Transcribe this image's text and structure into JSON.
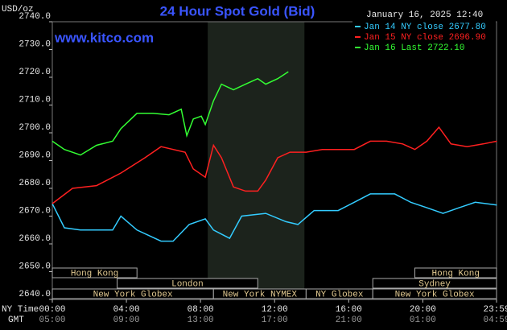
{
  "chart_data": {
    "type": "line",
    "title": "24 Hour Spot Gold (Bid)",
    "y_unit": "USD/oz",
    "watermark": "www.kitco.com",
    "timestamp": "January 16, 2025 12:40",
    "x_row_labels": [
      "NY Time",
      "GMT"
    ],
    "xlim": [
      0,
      23.98
    ],
    "xticks": [
      {
        "value": 0,
        "label": "00:00"
      },
      {
        "value": 4,
        "label": "04:00"
      },
      {
        "value": 8,
        "label": "08:00"
      },
      {
        "value": 12,
        "label": "12:00"
      },
      {
        "value": 16,
        "label": "16:00"
      },
      {
        "value": 20,
        "label": "20:00"
      },
      {
        "value": 23.98,
        "label": "23:59"
      }
    ],
    "gmt_labels": [
      "05:00",
      "09:00",
      "13:00",
      "17:00",
      "21:00",
      "01:00",
      "04:59"
    ],
    "ylim": [
      2640,
      2740
    ],
    "yticks": [
      {
        "value": 2740,
        "label": "2740.0"
      },
      {
        "value": 2730,
        "label": "2730.0"
      },
      {
        "value": 2720,
        "label": "2720.0"
      },
      {
        "value": 2710,
        "label": "2710.0"
      },
      {
        "value": 2700,
        "label": "2700.0"
      },
      {
        "value": 2690,
        "label": "2690.0"
      },
      {
        "value": 2680,
        "label": "2680.0"
      },
      {
        "value": 2670,
        "label": "2670.0"
      },
      {
        "value": 2660,
        "label": "2660.0"
      },
      {
        "value": 2650,
        "label": "2650.0"
      },
      {
        "value": 2640,
        "label": "2640.0"
      }
    ],
    "shaded": [
      8.39,
      13.61
    ],
    "sessions": [
      [
        {
          "label": "Hong Kong",
          "start": 0,
          "end": 4.57
        },
        {
          "label": "Hong Kong",
          "start": 19.57,
          "end": 23.98
        }
      ],
      [
        {
          "label": "London",
          "start": 3.5,
          "end": 11.09
        },
        {
          "label": "Sydney",
          "start": 17.3,
          "end": 23.98
        }
      ],
      [
        {
          "label": "New York Globex",
          "start": 0,
          "end": 8.7
        },
        {
          "label": "New York NYMEX",
          "start": 8.7,
          "end": 13.7
        },
        {
          "label": "NY Globex",
          "start": 13.7,
          "end": 17.3
        },
        {
          "label": "New York Globex",
          "start": 17.3,
          "end": 23.98
        }
      ]
    ],
    "series": [
      {
        "name": "Jan 14 NY close 2677.80",
        "color": "#33ccff",
        "x": [
          0,
          0.65,
          1.52,
          3.26,
          3.7,
          4.57,
          5.87,
          6.52,
          7.39,
          8.26,
          8.7,
          9.57,
          10.22,
          11.52,
          12.61,
          13.26,
          14.13,
          15.43,
          16.3,
          17.17,
          18.48,
          19.35,
          20.22,
          21.09,
          21.96,
          22.83,
          24
        ],
        "values": [
          2674.5,
          2665.8,
          2665,
          2665,
          2670,
          2665,
          2661,
          2661,
          2667,
          2669,
          2665,
          2662,
          2670,
          2671,
          2668,
          2667,
          2672,
          2672,
          2675,
          2678,
          2678,
          2675,
          2673,
          2671,
          2673,
          2675,
          2674
        ]
      },
      {
        "name": "Jan 15 NY close 2696.90",
        "color": "#ff2020",
        "x": [
          0,
          1.09,
          2.39,
          3.7,
          5,
          5.87,
          7.17,
          7.61,
          8.26,
          8.7,
          9.13,
          9.78,
          10.43,
          11.09,
          11.52,
          12.17,
          12.83,
          13.7,
          14.57,
          15.43,
          16.3,
          17.17,
          18.04,
          18.91,
          19.57,
          20.22,
          20.87,
          21.52,
          22.39,
          23.26,
          24
        ],
        "values": [
          2674.5,
          2680,
          2681,
          2685.5,
          2691,
          2695,
          2693,
          2687,
          2684,
          2695.5,
          2691,
          2680.5,
          2679,
          2679,
          2683,
          2691,
          2693,
          2693,
          2694,
          2694,
          2694,
          2697,
          2697,
          2696,
          2694,
          2697,
          2702,
          2696,
          2695,
          2696,
          2697
        ]
      },
      {
        "name": "Jan 16 Last 2722.10",
        "color": "#33ff33",
        "x": [
          0,
          0.65,
          1.52,
          2.39,
          3.26,
          3.7,
          4.57,
          5.43,
          6.3,
          6.96,
          7.26,
          7.61,
          8.04,
          8.26,
          8.7,
          9.13,
          9.78,
          10.43,
          11.09,
          11.52,
          12.17,
          12.74
        ],
        "values": [
          2697,
          2694,
          2692,
          2695.5,
          2697,
          2701.5,
          2707,
          2707,
          2706.5,
          2708.5,
          2699,
          2705,
          2706,
          2703,
          2711.5,
          2717.5,
          2715.5,
          2717.5,
          2719.5,
          2717.5,
          2719.5,
          2722
        ]
      }
    ]
  }
}
